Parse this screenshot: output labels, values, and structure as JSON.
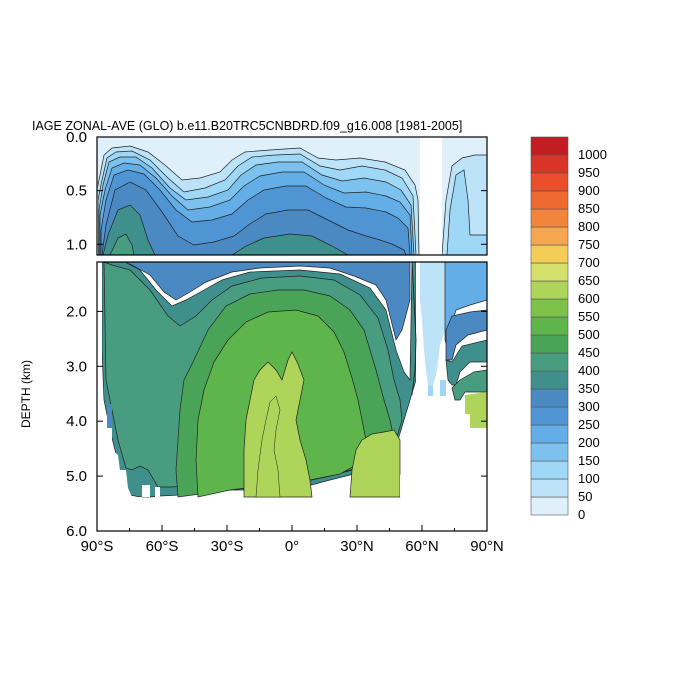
{
  "chart_data": {
    "type": "contour",
    "title": "IAGE ZONAL-AVE (GLO) b.e11.B20TRC5CNBDRD.f09_g16.008 [1981-2005]",
    "ylabel": "DEPTH (km)",
    "xlabel": "",
    "xlim": [
      -90,
      90
    ],
    "ylim": [
      0,
      6
    ],
    "y_inverted": true,
    "x_ticks": [
      {
        "value": -90,
        "label": "90°S"
      },
      {
        "value": -60,
        "label": "60°S"
      },
      {
        "value": -30,
        "label": "30°S"
      },
      {
        "value": 0,
        "label": "0°"
      },
      {
        "value": 30,
        "label": "30°N"
      },
      {
        "value": 60,
        "label": "60°N"
      },
      {
        "value": 90,
        "label": "90°N"
      }
    ],
    "y_ticks_upper": [
      {
        "value": 0,
        "label": "0.0"
      },
      {
        "value": 0.5,
        "label": "0.5"
      },
      {
        "value": 1.0,
        "label": "1.0"
      }
    ],
    "y_ticks_lower": [
      {
        "value": 2,
        "label": "2.0"
      },
      {
        "value": 3,
        "label": "3.0"
      },
      {
        "value": 4,
        "label": "4.0"
      },
      {
        "value": 5,
        "label": "5.0"
      },
      {
        "value": 6,
        "label": "6.0"
      }
    ],
    "upper_panel_depth_range": [
      0,
      1.1
    ],
    "lower_panel_depth_range": [
      1.1,
      6
    ],
    "colorbar": {
      "levels": [
        0,
        50,
        100,
        150,
        200,
        250,
        300,
        350,
        400,
        450,
        500,
        550,
        600,
        650,
        700,
        750,
        800,
        850,
        900,
        950,
        1000
      ],
      "colors": [
        "#dff0fb",
        "#bde3f8",
        "#9ed8f6",
        "#7dc2ef",
        "#63aee6",
        "#4f94d3",
        "#4b89c3",
        "#3f8f8c",
        "#489d80",
        "#4aa458",
        "#5eb54b",
        "#7ec24c",
        "#aed45a",
        "#d5e06a",
        "#f4cd59",
        "#f6a64e",
        "#f3843c",
        "#ee6a30",
        "#e84f2a",
        "#da3328",
        "#c31d24"
      ]
    },
    "fields": {
      "nodata_color": "#ffffff"
    }
  }
}
